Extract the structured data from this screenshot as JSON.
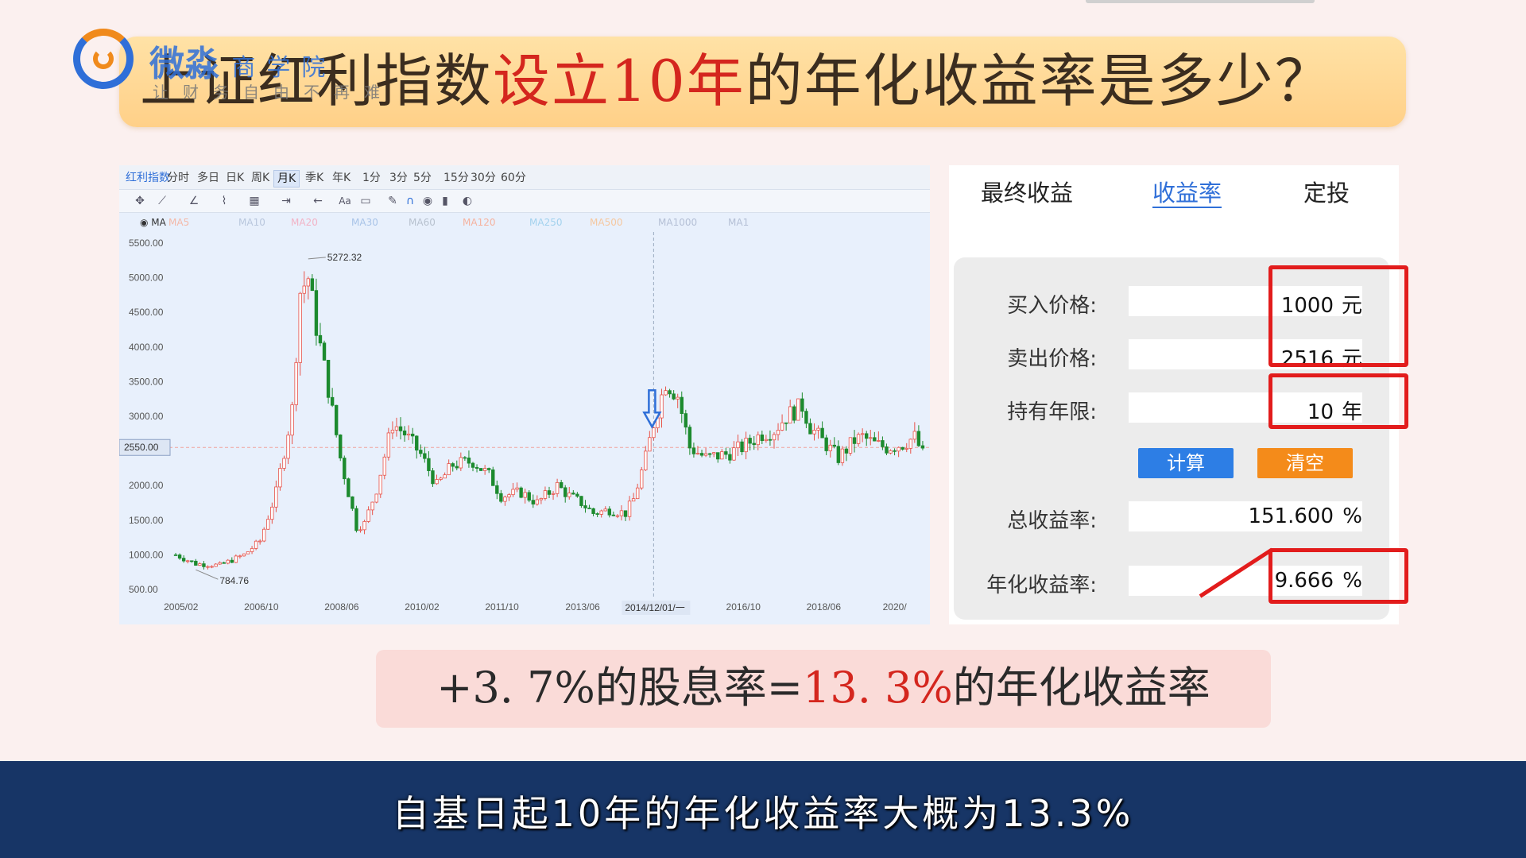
{
  "title": {
    "part1": "上证红利指数",
    "highlight": "设立10年",
    "part2": "的年化收益率是多少？"
  },
  "logo": {
    "name": "微淼",
    "sub": "商学院",
    "slogan": "让财务自由不再难"
  },
  "chart": {
    "tabs": [
      "红利指数",
      "分时",
      "多日",
      "日K",
      "周K",
      "月K",
      "季K",
      "年K",
      "1分",
      "3分",
      "5分",
      "15分",
      "30分",
      "60分"
    ],
    "active_tab": "月K",
    "ma_legend": [
      {
        "label": "MA",
        "color": "#333333"
      },
      {
        "label": "MA5",
        "color": "#f4b9a8"
      },
      {
        "label": "MA10",
        "color": "#b9c7dd"
      },
      {
        "label": "MA20",
        "color": "#f2b3c6"
      },
      {
        "label": "MA30",
        "color": "#a9c4e8"
      },
      {
        "label": "MA60",
        "color": "#b8c2cf"
      },
      {
        "label": "MA120",
        "color": "#f5b3a0"
      },
      {
        "label": "MA250",
        "color": "#a3d2ee"
      },
      {
        "label": "MA500",
        "color": "#f5c8a0"
      },
      {
        "label": "MA1000",
        "color": "#b5c0d6"
      },
      {
        "label": "MA1",
        "color": "#b5c0d6"
      }
    ],
    "current_price_label": "2550.00",
    "crosshair_date": "2014/12/01/一",
    "high_label": "5272.32",
    "low_label": "784.76"
  },
  "chart_data": {
    "type": "candlestick",
    "title": "红利指数",
    "ylim": [
      500,
      5500
    ],
    "yticks": [
      5500,
      5000,
      4500,
      4000,
      3500,
      3000,
      2500,
      2000,
      1500,
      1000,
      500
    ],
    "ytick_labels": [
      "5500.00",
      "5000.00",
      "4500.00",
      "4000.00",
      "3500.00",
      "3000.00",
      "2500.00",
      "2000.00",
      "1500.00",
      "1000.00",
      "500.00"
    ],
    "xlim": [
      "2004/12",
      "2020/08"
    ],
    "xticks": [
      "2005/02",
      "2006/10",
      "2008/06",
      "2010/02",
      "2011/10",
      "2013/06",
      "2016/10",
      "2018/06",
      "2020/"
    ],
    "x": [
      "2005/01",
      "2005/06",
      "2005/12",
      "2006/06",
      "2006/10",
      "2007/02",
      "2007/06",
      "2007/08",
      "2007/10",
      "2007/12",
      "2008/03",
      "2008/06",
      "2008/10",
      "2008/12",
      "2009/03",
      "2009/07",
      "2009/10",
      "2010/02",
      "2010/06",
      "2010/10",
      "2011/03",
      "2011/07",
      "2011/10",
      "2012/03",
      "2012/07",
      "2012/12",
      "2013/03",
      "2013/06",
      "2013/09",
      "2014/01",
      "2014/05",
      "2014/07",
      "2014/10",
      "2014/12",
      "2015/03",
      "2015/06",
      "2015/09",
      "2016/01",
      "2016/06",
      "2016/10",
      "2017/03",
      "2017/06",
      "2017/09",
      "2018/01",
      "2018/03",
      "2018/06",
      "2018/10",
      "2019/02",
      "2019/04",
      "2019/07",
      "2019/10",
      "2020/02",
      "2020/05",
      "2020/07"
    ],
    "close": [
      1000,
      870,
      850,
      1000,
      1200,
      1900,
      3100,
      4800,
      5000,
      4300,
      3400,
      2400,
      1400,
      1450,
      1950,
      2900,
      2750,
      2450,
      2000,
      2300,
      2350,
      2150,
      1850,
      1900,
      1750,
      2000,
      1850,
      1750,
      1600,
      1650,
      1600,
      1800,
      2400,
      2900,
      3500,
      3300,
      2550,
      2400,
      2450,
      2550,
      2750,
      2800,
      3000,
      3150,
      2850,
      2650,
      2400,
      2650,
      2700,
      2600,
      2550,
      2600,
      2700,
      2450
    ],
    "events": [
      {
        "date": "2014/12",
        "label": "arrow-down",
        "value": 3100
      }
    ],
    "annotations": [
      {
        "text": "5272.32",
        "x": "2007/10",
        "y": 5272.32
      },
      {
        "text": "784.76",
        "x": "2005/06",
        "y": 784.76
      }
    ],
    "current_price": 2550,
    "grid": false,
    "xlabel": "",
    "ylabel": ""
  },
  "calculator": {
    "tabs": [
      "最终收益",
      "收益率",
      "定投"
    ],
    "active_tab": "收益率",
    "fields": [
      {
        "label": "买入价格:",
        "value": "1000",
        "unit": "元"
      },
      {
        "label": "卖出价格:",
        "value": "2516",
        "unit": "元"
      },
      {
        "label": "持有年限:",
        "value": "10",
        "unit": "年"
      }
    ],
    "buttons": {
      "calculate": "计算",
      "clear": "清空"
    },
    "results": [
      {
        "label": "总收益率:",
        "value": "151.600",
        "unit": "%"
      },
      {
        "label": "年化收益率:",
        "value": "9.666",
        "unit": "%"
      }
    ],
    "colors": {
      "calculate": "#2d7ee5",
      "clear": "#f48b1a",
      "highlight_box": "#e21c1c"
    }
  },
  "result_bar": {
    "part1": "+3. 7%的股息率=",
    "highlight": "13. 3%",
    "part2": "的年化收益率"
  },
  "subtitle": "自基日起10年的年化收益率大概为13.3%"
}
